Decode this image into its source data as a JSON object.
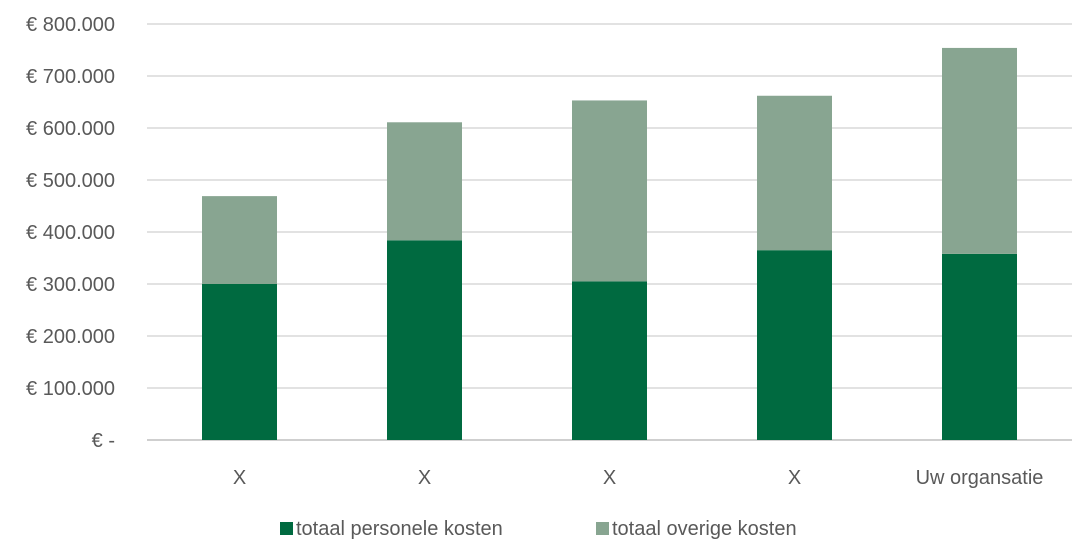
{
  "chart_data": {
    "type": "bar",
    "stacked": true,
    "categories": [
      "X",
      "X",
      "X",
      "X",
      "Uw organsatie"
    ],
    "series": [
      {
        "name": "totaal personele kosten",
        "color": "#006a40",
        "values": [
          300000,
          384000,
          305000,
          365000,
          358000
        ]
      },
      {
        "name": "totaal overige kosten",
        "color": "#88a591",
        "values": [
          169000,
          227000,
          348000,
          297000,
          396000
        ]
      }
    ],
    "y_ticks": [
      {
        "value": 0,
        "label": "€ -"
      },
      {
        "value": 100000,
        "label": "€ 100.000"
      },
      {
        "value": 200000,
        "label": "€ 200.000"
      },
      {
        "value": 300000,
        "label": "€ 300.000"
      },
      {
        "value": 400000,
        "label": "€ 400.000"
      },
      {
        "value": 500000,
        "label": "€ 500.000"
      },
      {
        "value": 600000,
        "label": "€ 600.000"
      },
      {
        "value": 700000,
        "label": "€ 700.000"
      },
      {
        "value": 800000,
        "label": "€ 800.000"
      }
    ],
    "ylim": [
      0,
      800000
    ],
    "grid": true,
    "legend_position": "bottom"
  }
}
